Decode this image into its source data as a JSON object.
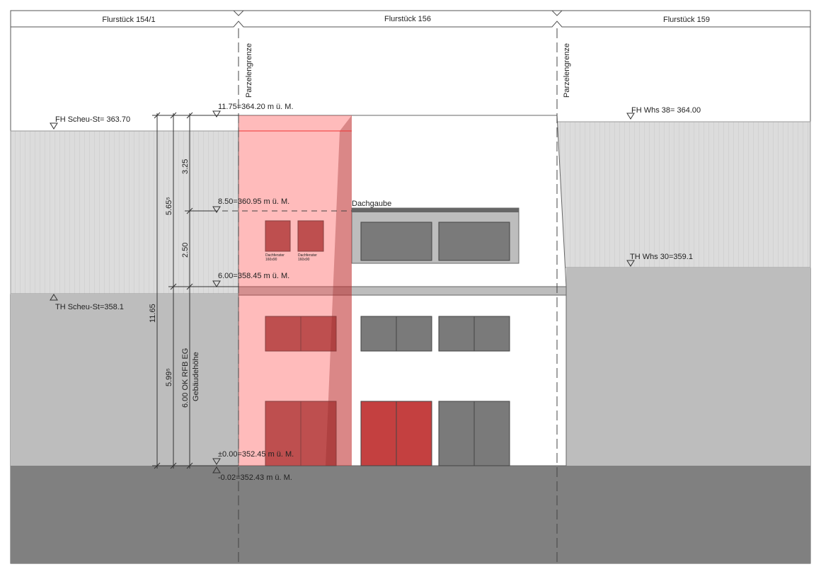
{
  "parcels": [
    "Flurstück 154/1",
    "Flurstück 156",
    "Flurstück 159"
  ],
  "boundary_labels": [
    "Parzelengrenze",
    "Parzelengrenze"
  ],
  "levels": [
    "11.75=364.20 m ü. M.",
    "8.50=360.95 m ü. M.",
    "6.00=358.45 m ü. M.",
    "±0.00=352.45 m ü. M.",
    "-0.02=352.43 m ü. M."
  ],
  "neighbors": [
    "FH Scheu-St= 363.70",
    "TH Scheu-St=358.1",
    "FH Whs 38= 364.00",
    "TH Whs 30=359.1"
  ],
  "dormer_label": "Dachgaube",
  "roof_windows": [
    {
      "name": "Dachfenster",
      "size": "160x90"
    },
    {
      "name": "Dachfenster",
      "size": "160x90"
    }
  ],
  "dimensions": [
    "3.25",
    "2.50",
    "5.65⁵",
    "11.65",
    "5.99⁵",
    "6.00 OK RFB EG",
    "Gebäudehöhe"
  ]
}
